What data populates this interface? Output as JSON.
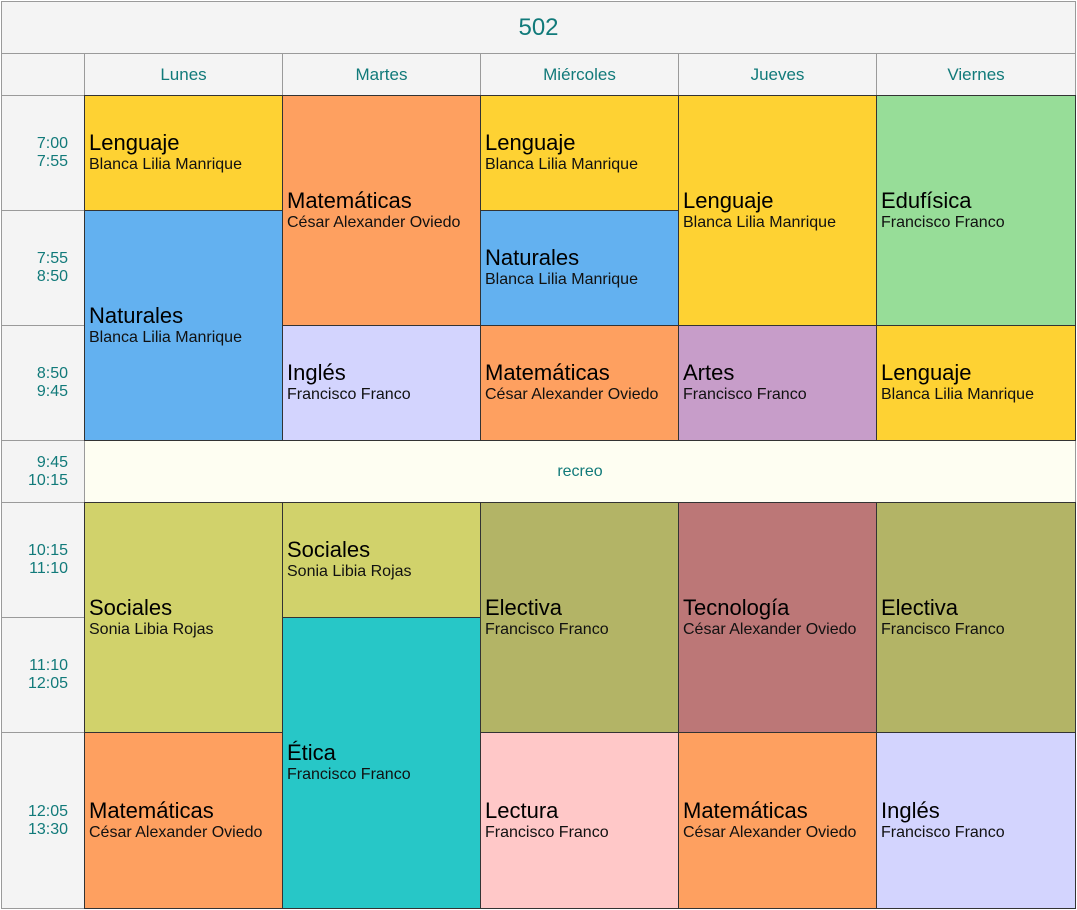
{
  "title": "502",
  "days": [
    "Lunes",
    "Martes",
    "Miércoles",
    "Jueves",
    "Viernes"
  ],
  "times": [
    {
      "start": "7:00",
      "end": "7:55"
    },
    {
      "start": "7:55",
      "end": "8:50"
    },
    {
      "start": "8:50",
      "end": "9:45"
    },
    {
      "start": "9:45",
      "end": "10:15"
    },
    {
      "start": "10:15",
      "end": "11:10"
    },
    {
      "start": "11:10",
      "end": "12:05"
    },
    {
      "start": "12:05",
      "end": "13:30"
    }
  ],
  "break_label": "recreo",
  "colors": {
    "lenguaje": "#fed233",
    "matematicas": "#fea060",
    "naturales": "#63b1f0",
    "edufisica": "#97dd98",
    "ingles": "#d3d4fe",
    "artes": "#c79dc9",
    "sociales": "#d1d26b",
    "electiva": "#b3b466",
    "tecnologia": "#bc7777",
    "etica": "#27c7c7",
    "lectura": "#ffc8c8"
  },
  "classes": [
    {
      "day": 0,
      "slot": 0,
      "span": 1,
      "subject": "Lenguaje",
      "teacher": "Blanca Lilia Manrique",
      "color": "#fed233"
    },
    {
      "day": 0,
      "slot": 1,
      "span": 2,
      "subject": "Naturales",
      "teacher": "Blanca Lilia Manrique",
      "color": "#63b1f0"
    },
    {
      "day": 0,
      "slot": 4,
      "span": 2,
      "subject": "Sociales",
      "teacher": "Sonia Libia Rojas",
      "color": "#d1d26b"
    },
    {
      "day": 0,
      "slot": 6,
      "span": 1,
      "subject": "Matemáticas",
      "teacher": "César Alexander Oviedo",
      "color": "#fea060"
    },
    {
      "day": 1,
      "slot": 0,
      "span": 2,
      "subject": "Matemáticas",
      "teacher": "César Alexander Oviedo",
      "color": "#fea060"
    },
    {
      "day": 1,
      "slot": 2,
      "span": 1,
      "subject": "Inglés",
      "teacher": "Francisco Franco",
      "color": "#d3d4fe"
    },
    {
      "day": 1,
      "slot": 4,
      "span": 1,
      "subject": "Sociales",
      "teacher": "Sonia Libia Rojas",
      "color": "#d1d26b"
    },
    {
      "day": 1,
      "slot": 5,
      "span": 2,
      "subject": "Ética",
      "teacher": "Francisco Franco",
      "color": "#27c7c7"
    },
    {
      "day": 2,
      "slot": 0,
      "span": 1,
      "subject": "Lenguaje",
      "teacher": "Blanca Lilia Manrique",
      "color": "#fed233"
    },
    {
      "day": 2,
      "slot": 1,
      "span": 1,
      "subject": "Naturales",
      "teacher": "Blanca Lilia Manrique",
      "color": "#63b1f0"
    },
    {
      "day": 2,
      "slot": 2,
      "span": 1,
      "subject": "Matemáticas",
      "teacher": "César Alexander Oviedo",
      "color": "#fea060"
    },
    {
      "day": 2,
      "slot": 4,
      "span": 2,
      "subject": "Electiva",
      "teacher": "Francisco Franco",
      "color": "#b3b466"
    },
    {
      "day": 2,
      "slot": 6,
      "span": 1,
      "subject": "Lectura",
      "teacher": "Francisco Franco",
      "color": "#ffc8c8"
    },
    {
      "day": 3,
      "slot": 0,
      "span": 2,
      "subject": "Lenguaje",
      "teacher": "Blanca Lilia Manrique",
      "color": "#fed233"
    },
    {
      "day": 3,
      "slot": 2,
      "span": 1,
      "subject": "Artes",
      "teacher": "Francisco Franco",
      "color": "#c79dc9"
    },
    {
      "day": 3,
      "slot": 4,
      "span": 2,
      "subject": "Tecnología",
      "teacher": "César Alexander Oviedo",
      "color": "#bc7777"
    },
    {
      "day": 3,
      "slot": 6,
      "span": 1,
      "subject": "Matemáticas",
      "teacher": "César Alexander Oviedo",
      "color": "#fea060"
    },
    {
      "day": 4,
      "slot": 0,
      "span": 2,
      "subject": "Edufísica",
      "teacher": "Francisco Franco",
      "color": "#97dd98"
    },
    {
      "day": 4,
      "slot": 2,
      "span": 1,
      "subject": "Lenguaje",
      "teacher": "Blanca Lilia Manrique",
      "color": "#fed233"
    },
    {
      "day": 4,
      "slot": 4,
      "span": 2,
      "subject": "Electiva",
      "teacher": "Francisco Franco",
      "color": "#b3b466"
    },
    {
      "day": 4,
      "slot": 6,
      "span": 1,
      "subject": "Inglés",
      "teacher": "Francisco Franco",
      "color": "#d3d4fe"
    }
  ]
}
